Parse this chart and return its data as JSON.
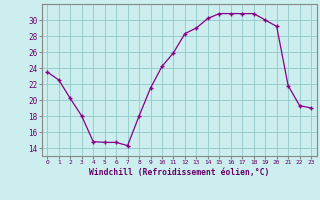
{
  "x": [
    0,
    1,
    2,
    3,
    4,
    5,
    6,
    7,
    8,
    9,
    10,
    11,
    12,
    13,
    14,
    15,
    16,
    17,
    18,
    19,
    20,
    21,
    22,
    23
  ],
  "y": [
    23.5,
    22.5,
    20.2,
    18.0,
    14.8,
    14.7,
    14.7,
    14.3,
    18.0,
    21.5,
    24.2,
    25.9,
    28.3,
    29.0,
    30.2,
    30.8,
    30.8,
    30.8,
    30.8,
    30.0,
    29.2,
    21.8,
    19.3,
    19.0
  ],
  "ylim": [
    13,
    32
  ],
  "yticks": [
    14,
    16,
    18,
    20,
    22,
    24,
    26,
    28,
    30
  ],
  "xtick_labels": [
    "0",
    "1",
    "2",
    "3",
    "4",
    "5",
    "6",
    "7",
    "8",
    "9",
    "10",
    "11",
    "12",
    "13",
    "14",
    "15",
    "16",
    "17",
    "18",
    "19",
    "20",
    "21",
    "22",
    "23"
  ],
  "line_color": "#880088",
  "marker": "+",
  "bg_color": "#cceeee",
  "grid_color": "#99cccc",
  "xlabel": "Windchill (Refroidissement éolien,°C)",
  "xlabel_color": "#660066",
  "tick_color": "#660066"
}
